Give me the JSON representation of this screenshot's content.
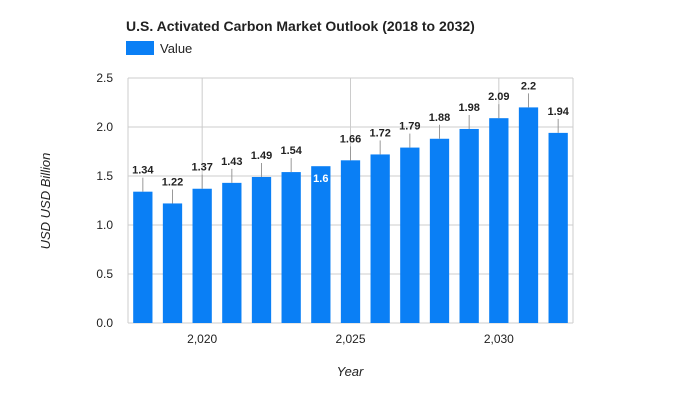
{
  "chart_data": {
    "type": "bar",
    "title": "U.S. Activated Carbon Market Outlook (2018 to 2032)",
    "xlabel": "Year",
    "ylabel": "USD USD Billion",
    "x": [
      2018,
      2019,
      2020,
      2021,
      2022,
      2023,
      2024,
      2025,
      2026,
      2027,
      2028,
      2029,
      2030,
      2031,
      2032
    ],
    "series": [
      {
        "name": "Value",
        "values": [
          1.34,
          1.22,
          1.37,
          1.43,
          1.49,
          1.54,
          1.6,
          1.66,
          1.72,
          1.79,
          1.88,
          1.98,
          2.09,
          2.2,
          1.94
        ],
        "data_labels": [
          "1.34",
          "1.22",
          "1.37",
          "1.43",
          "1.49",
          "1.54",
          "1.6",
          "1.66",
          "1.72",
          "1.79",
          "1.88",
          "1.98",
          "2.09",
          "2.2",
          "1.94"
        ]
      }
    ],
    "ylim": [
      0,
      2.5
    ],
    "y_ticks": [
      0,
      0.5,
      1,
      1.5,
      2,
      2.5
    ],
    "y_tick_labels": [
      "0.0",
      "0.5",
      "1.0",
      "1.5",
      "2.0",
      "2.5"
    ],
    "x_ticks": [
      2020,
      2025,
      2030
    ],
    "x_tick_labels": [
      "2,020",
      "2,025",
      "2,030"
    ],
    "grid": true,
    "legend_position": "top-left",
    "bar_color": "#0a7ff5",
    "gridline_color": "#cccccc",
    "text_color": "#222222",
    "label_inside_color": "#ffffff"
  }
}
